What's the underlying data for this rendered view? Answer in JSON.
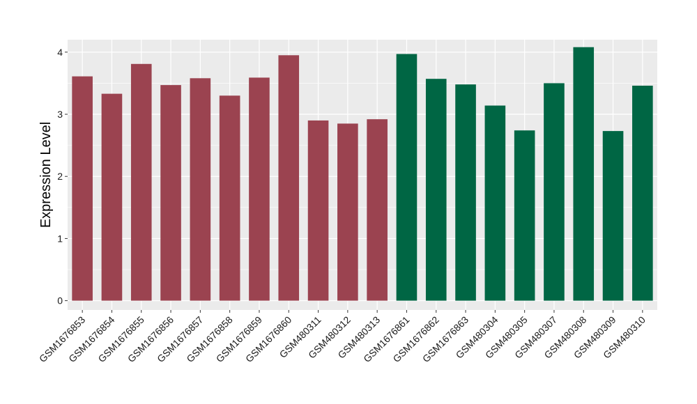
{
  "chart_data": {
    "type": "bar",
    "title": "",
    "xlabel": "",
    "ylabel": "Expression Level",
    "ylim": [
      -0.15,
      4.2
    ],
    "yticks": [
      0,
      1,
      2,
      3,
      4
    ],
    "grid": true,
    "legend": "none",
    "panel_background": "#ebebeb",
    "grid_color": "#ffffff",
    "categories": [
      "GSM1676853",
      "GSM1676854",
      "GSM1676855",
      "GSM1676856",
      "GSM1676857",
      "GSM1676858",
      "GSM1676859",
      "GSM1676860",
      "GSM480311",
      "GSM480312",
      "GSM480313",
      "GSM1676861",
      "GSM1676862",
      "GSM1676863",
      "GSM480304",
      "GSM480305",
      "GSM480307",
      "GSM480308",
      "GSM480309",
      "GSM480310"
    ],
    "values": [
      3.61,
      3.33,
      3.81,
      3.47,
      3.58,
      3.3,
      3.59,
      3.95,
      2.9,
      2.85,
      2.92,
      3.97,
      3.57,
      3.48,
      3.14,
      2.74,
      3.5,
      4.08,
      2.73,
      3.46
    ],
    "bar_colors": [
      "#9b4350",
      "#9b4350",
      "#9b4350",
      "#9b4350",
      "#9b4350",
      "#9b4350",
      "#9b4350",
      "#9b4350",
      "#9b4350",
      "#9b4350",
      "#9b4350",
      "#006644",
      "#006644",
      "#006644",
      "#006644",
      "#006644",
      "#006644",
      "#006644",
      "#006644",
      "#006644"
    ]
  }
}
